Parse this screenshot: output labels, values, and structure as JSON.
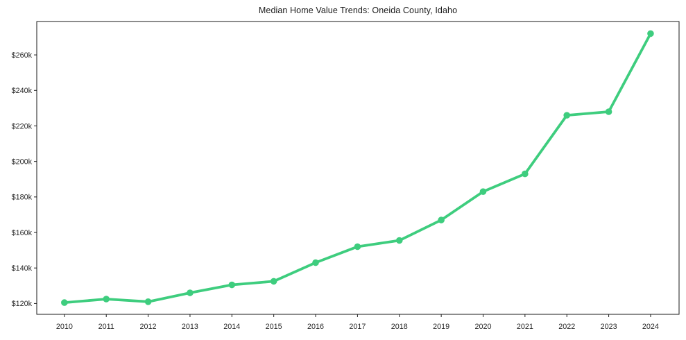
{
  "chart_data": {
    "type": "line",
    "title": "Median Home Value Trends: Oneida County, Idaho",
    "xlabel": "",
    "ylabel": "",
    "x": [
      2010,
      2011,
      2012,
      2013,
      2014,
      2015,
      2016,
      2017,
      2018,
      2019,
      2020,
      2021,
      2022,
      2023,
      2024
    ],
    "x_labels": [
      "2010",
      "2011",
      "2012",
      "2013",
      "2014",
      "2015",
      "2016",
      "2017",
      "2018",
      "2019",
      "2020",
      "2021",
      "2022",
      "2023",
      "2024"
    ],
    "series": [
      {
        "name": "Median Home Value",
        "values": [
          120500,
          122500,
          121000,
          126000,
          130500,
          132500,
          143000,
          152000,
          155500,
          167000,
          183000,
          193000,
          226000,
          228000,
          272000
        ],
        "color": "#3ecd7e"
      }
    ],
    "yticks": [
      {
        "value": 120000,
        "label": "$120k"
      },
      {
        "value": 140000,
        "label": "$140k"
      },
      {
        "value": 160000,
        "label": "$160k"
      },
      {
        "value": 180000,
        "label": "$180k"
      },
      {
        "value": 200000,
        "label": "$200k"
      },
      {
        "value": 220000,
        "label": "$220k"
      },
      {
        "value": 240000,
        "label": "$240k"
      },
      {
        "value": 260000,
        "label": "$260k"
      }
    ],
    "xlim": [
      2009.34,
      2024.68
    ],
    "ylim": [
      113900,
      278800
    ],
    "grid": false,
    "legend": false,
    "marker": "circle",
    "line_width": 3.8,
    "marker_radius": 4.8,
    "axis_color": "#1a1a1a",
    "background": "#ffffff"
  }
}
